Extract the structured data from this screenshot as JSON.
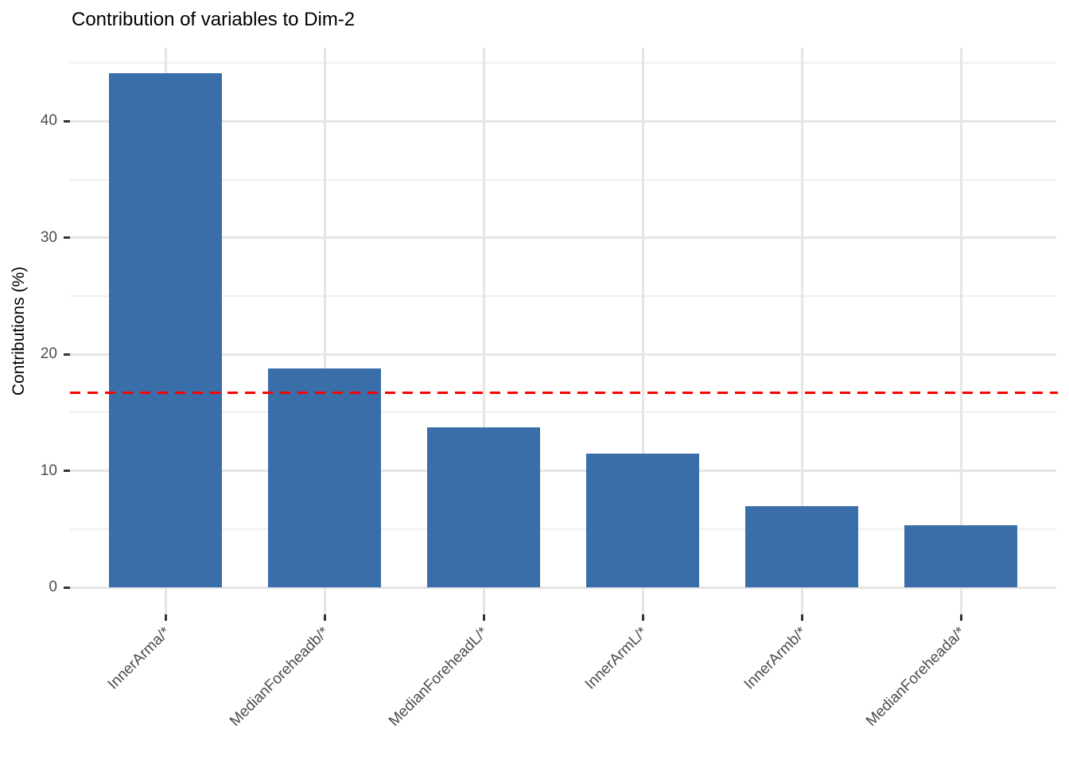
{
  "chart_data": {
    "type": "bar",
    "title": "Contribution of variables to Dim-2",
    "xlabel": "",
    "ylabel": "Contributions (%)",
    "categories": [
      "InnerArma/*",
      "MedianForeheadb/*",
      "MedianForeheadL/*",
      "InnerArmL/*",
      "InnerArmb/*",
      "MedianForeheada/*"
    ],
    "values": [
      44.1,
      18.8,
      13.7,
      11.5,
      7.0,
      5.3
    ],
    "y_ticks": [
      0,
      10,
      20,
      30,
      40
    ],
    "y_minor_ticks": [
      5,
      15,
      25,
      35,
      45
    ],
    "ylim": [
      -2.3,
      46.3
    ],
    "reference_line": {
      "value": 16.7,
      "color": "#ff0000",
      "style": "dashed"
    },
    "bar_color": "#3a6ea8",
    "grid": "on",
    "legend": "none",
    "colors": {
      "grid_major": "#e5e5e5",
      "grid_minor": "#efefef",
      "axis_text": "#4d4d4d",
      "tick_mark": "#333333",
      "title_text": "#000000"
    }
  }
}
